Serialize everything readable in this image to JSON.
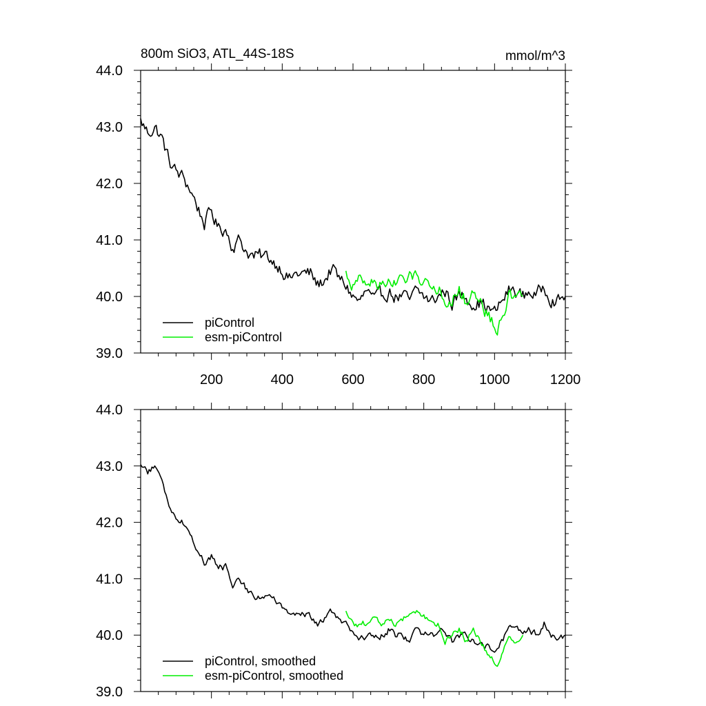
{
  "chart_data": [
    {
      "type": "line",
      "title": "800m SiO3, ATL_44S-18S",
      "units": "mmol/m^3",
      "xlim": [
        0,
        1200
      ],
      "ylim": [
        39.0,
        44.0
      ],
      "xticks": [
        200,
        400,
        600,
        800,
        1000,
        1200
      ],
      "xtick_labels": [
        "200",
        "400",
        "600",
        "800",
        "1000",
        "1200"
      ],
      "yticks": [
        39.0,
        40.0,
        41.0,
        42.0,
        43.0,
        44.0
      ],
      "ytick_labels": [
        "39.0",
        "40.0",
        "41.0",
        "42.0",
        "43.0",
        "44.0"
      ],
      "legend_position": "bottom-left",
      "series": [
        {
          "name": "piControl",
          "color": "#000000",
          "x": [
            0,
            20,
            40,
            60,
            80,
            100,
            120,
            140,
            160,
            180,
            200,
            220,
            240,
            260,
            280,
            300,
            320,
            340,
            360,
            380,
            400,
            420,
            440,
            460,
            480,
            500,
            520,
            540,
            560,
            580,
            600,
            620,
            640,
            660,
            680,
            700,
            720,
            740,
            760,
            780,
            800,
            820,
            840,
            860,
            880,
            900,
            920,
            940,
            960,
            980,
            1000,
            1020,
            1040,
            1060,
            1080,
            1100,
            1120,
            1140,
            1160,
            1180,
            1200
          ],
          "y": [
            43.1,
            42.9,
            43.0,
            42.8,
            42.4,
            42.2,
            42.1,
            41.9,
            41.6,
            41.3,
            41.5,
            41.2,
            41.2,
            40.9,
            41.0,
            40.8,
            40.7,
            40.7,
            40.7,
            40.6,
            40.5,
            40.3,
            40.4,
            40.4,
            40.4,
            40.2,
            40.3,
            40.5,
            40.3,
            40.2,
            40.0,
            39.9,
            40.1,
            39.9,
            40.0,
            40.1,
            40.0,
            40.0,
            39.9,
            40.1,
            40.0,
            39.9,
            40.0,
            40.1,
            39.9,
            40.0,
            40.0,
            39.9,
            39.9,
            39.8,
            39.7,
            39.9,
            40.1,
            40.1,
            40.0,
            40.1,
            40.0,
            40.2,
            40.0,
            39.9,
            40.0
          ]
        },
        {
          "name": "esm-piControl",
          "color": "#00ee00",
          "x": [
            580,
            600,
            620,
            640,
            660,
            680,
            700,
            720,
            740,
            760,
            780,
            800,
            820,
            840,
            860,
            880,
            900,
            920,
            940,
            960,
            980,
            1000,
            1010,
            1020,
            1040,
            1060,
            1080
          ],
          "y": [
            40.4,
            40.2,
            40.3,
            40.2,
            40.3,
            40.2,
            40.3,
            40.2,
            40.3,
            40.3,
            40.4,
            40.3,
            40.2,
            40.2,
            39.9,
            40.0,
            40.1,
            39.9,
            40.1,
            39.9,
            39.7,
            39.5,
            39.4,
            39.7,
            40.0,
            39.9,
            40.0
          ]
        }
      ]
    },
    {
      "type": "line",
      "title": "",
      "xlim": [
        0,
        1200
      ],
      "ylim": [
        39.0,
        44.0
      ],
      "xticks": [
        200,
        400,
        600,
        800,
        1000,
        1200
      ],
      "yticks": [
        39.0,
        40.0,
        41.0,
        42.0,
        43.0,
        44.0
      ],
      "ytick_labels": [
        "39.0",
        "40.0",
        "41.0",
        "42.0",
        "43.0",
        "44.0"
      ],
      "legend_position": "bottom-left",
      "series": [
        {
          "name": "piControl, smoothed",
          "color": "#000000",
          "x": [
            0,
            20,
            40,
            60,
            80,
            100,
            120,
            140,
            160,
            180,
            200,
            220,
            240,
            260,
            280,
            300,
            320,
            340,
            360,
            380,
            400,
            420,
            440,
            460,
            480,
            500,
            520,
            540,
            560,
            580,
            600,
            620,
            640,
            660,
            680,
            700,
            720,
            740,
            760,
            780,
            800,
            820,
            840,
            860,
            880,
            900,
            920,
            940,
            960,
            980,
            1000,
            1020,
            1040,
            1060,
            1080,
            1100,
            1120,
            1140,
            1160,
            1180,
            1200
          ],
          "y": [
            43.0,
            42.9,
            43.0,
            42.7,
            42.3,
            42.1,
            42.0,
            41.8,
            41.5,
            41.3,
            41.4,
            41.2,
            41.2,
            40.9,
            41.0,
            40.8,
            40.7,
            40.7,
            40.7,
            40.6,
            40.5,
            40.3,
            40.4,
            40.4,
            40.3,
            40.2,
            40.3,
            40.4,
            40.3,
            40.2,
            40.0,
            39.9,
            40.0,
            39.9,
            40.0,
            40.1,
            40.0,
            40.0,
            39.9,
            40.1,
            40.0,
            40.0,
            40.0,
            40.1,
            39.9,
            40.0,
            40.0,
            39.9,
            39.9,
            39.8,
            39.7,
            39.9,
            40.1,
            40.1,
            40.0,
            40.1,
            40.0,
            40.2,
            40.0,
            39.9,
            40.0
          ]
        },
        {
          "name": "esm-piControl, smoothed",
          "color": "#00ee00",
          "x": [
            580,
            600,
            620,
            640,
            660,
            680,
            700,
            720,
            740,
            760,
            780,
            800,
            820,
            840,
            860,
            880,
            900,
            920,
            940,
            960,
            980,
            1000,
            1010,
            1020,
            1040,
            1060,
            1080
          ],
          "y": [
            40.4,
            40.2,
            40.2,
            40.2,
            40.3,
            40.2,
            40.3,
            40.2,
            40.3,
            40.3,
            40.4,
            40.3,
            40.2,
            40.2,
            39.9,
            40.0,
            40.1,
            39.9,
            40.1,
            39.9,
            39.7,
            39.5,
            39.45,
            39.7,
            40.0,
            39.9,
            40.0
          ]
        }
      ]
    }
  ]
}
